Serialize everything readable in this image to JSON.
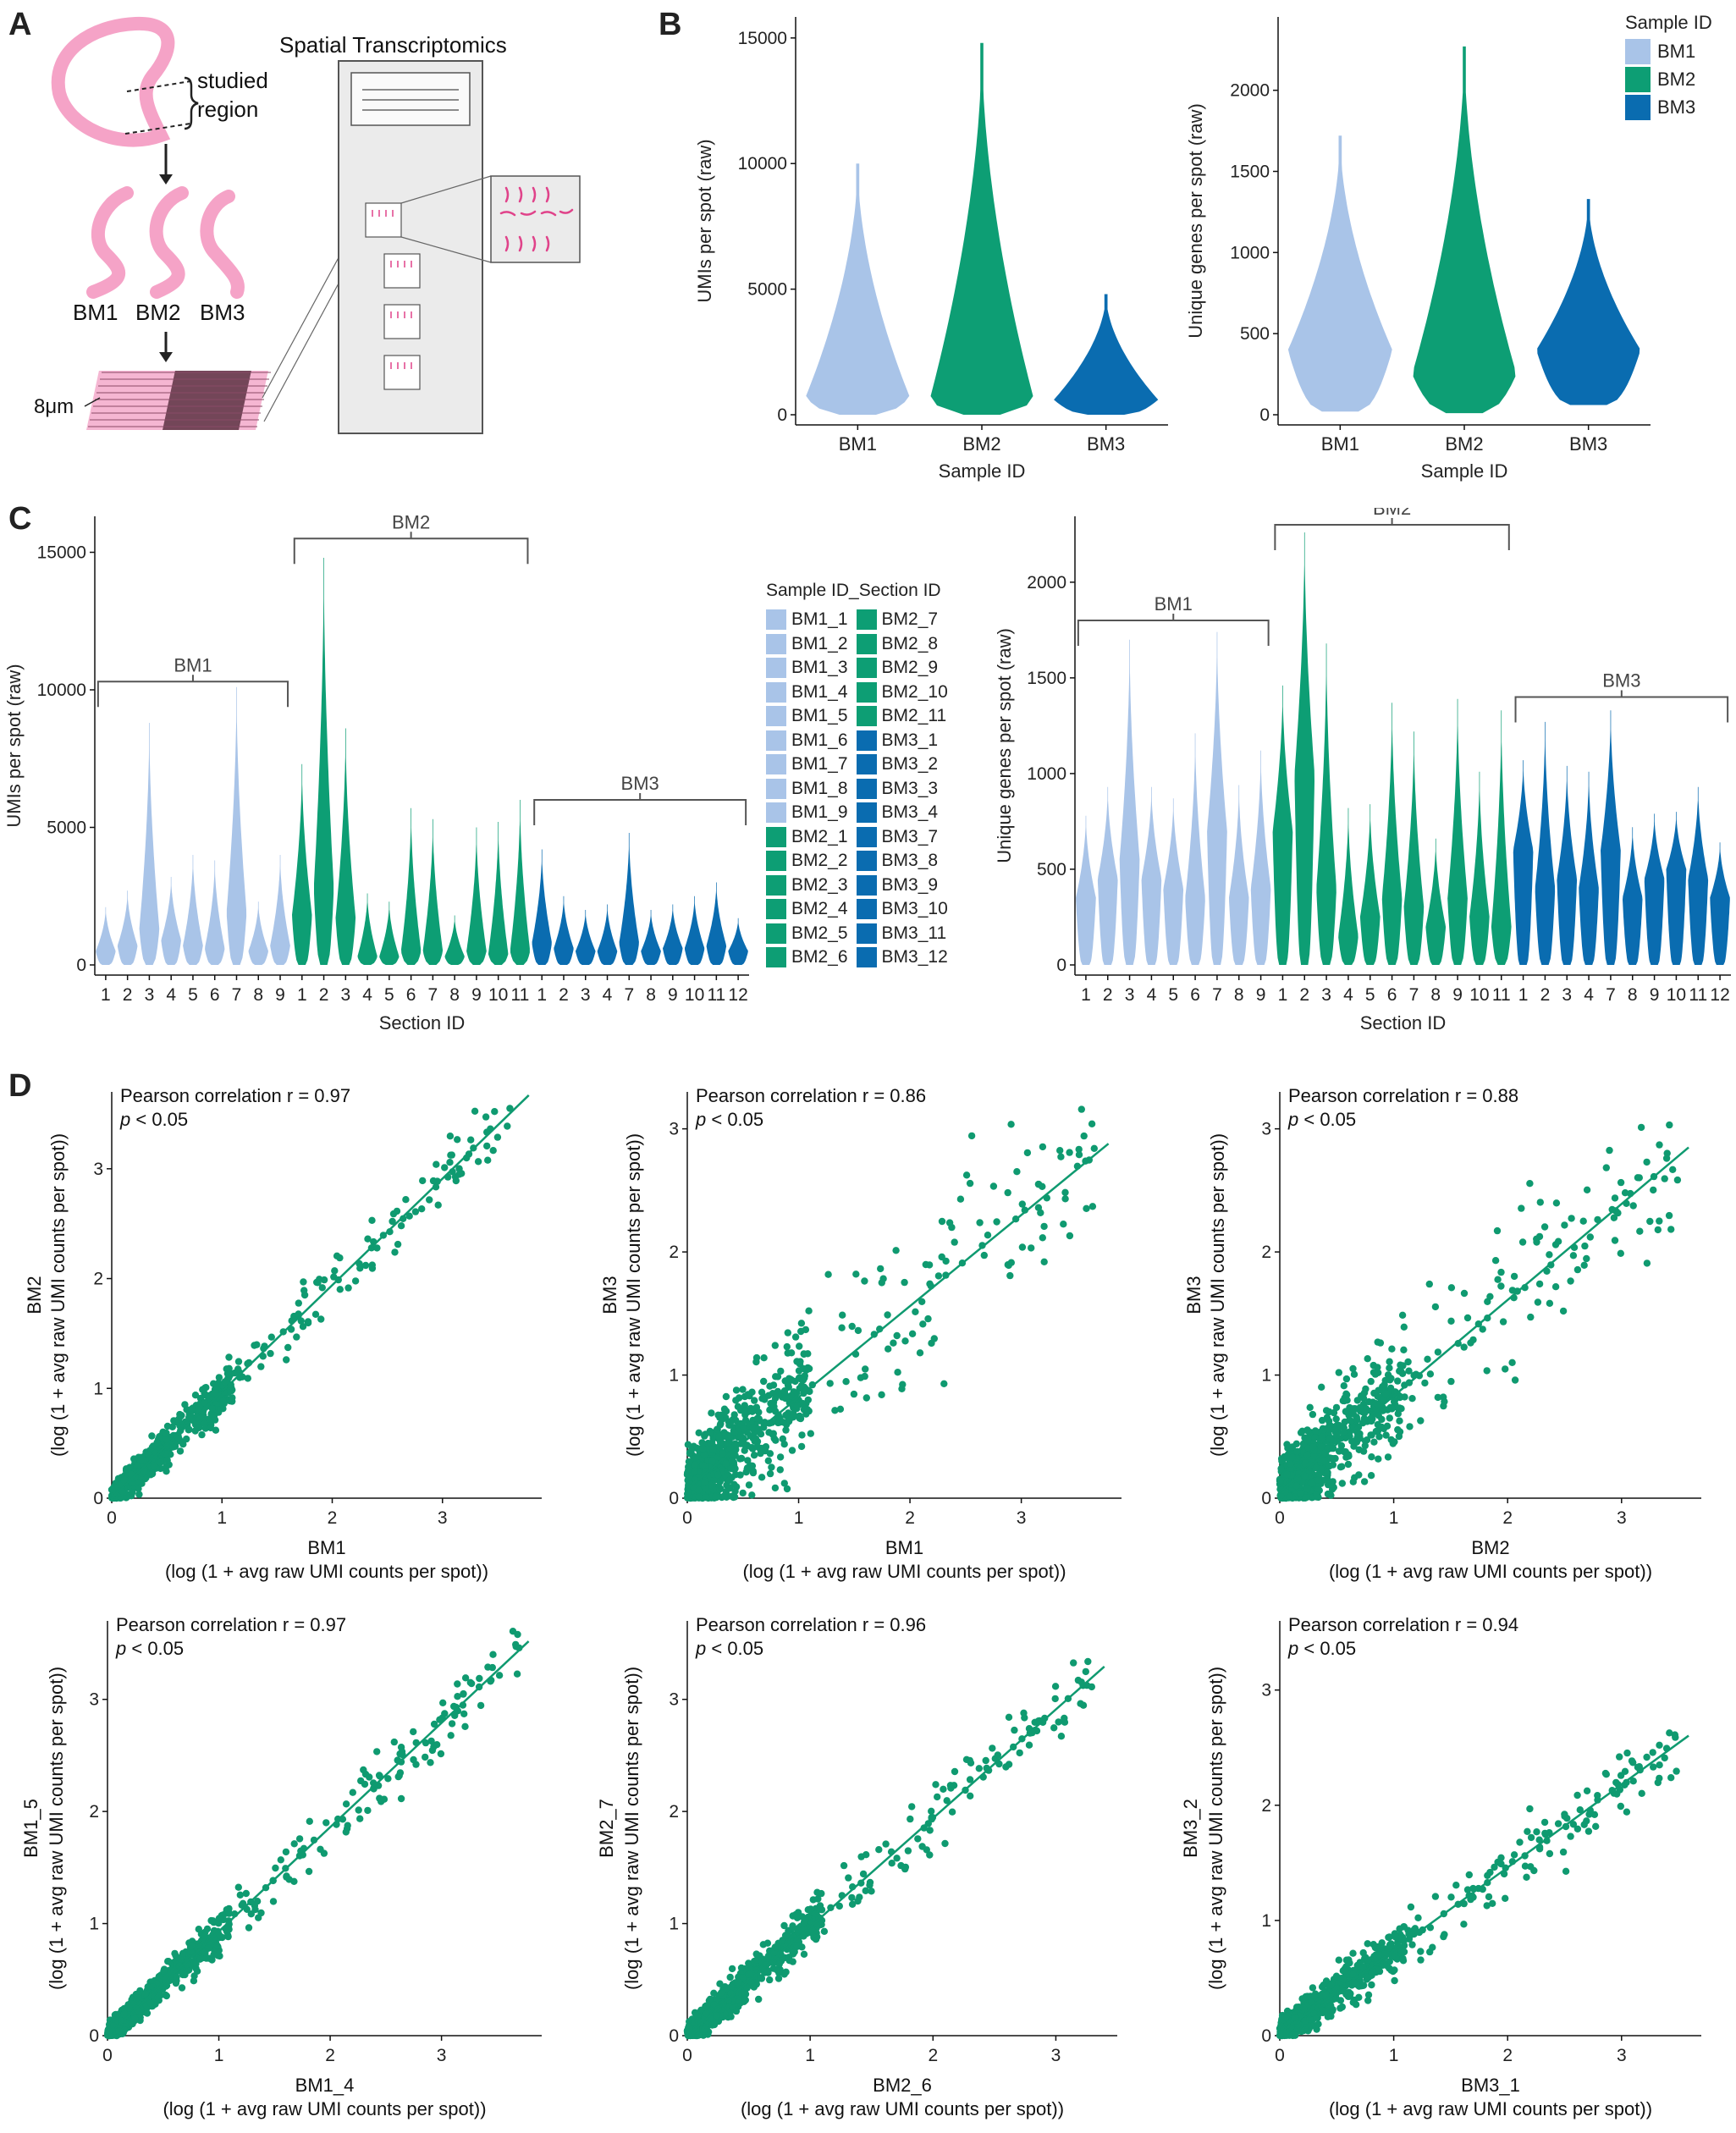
{
  "panels": {
    "a": "A",
    "b": "B",
    "c": "C",
    "d": "D"
  },
  "colors": {
    "BM1": "#a9c4e8",
    "BM2": "#0d9e74",
    "BM3": "#0a6cb0",
    "scatter": "#0f9a70",
    "pink": "#f5a3c7",
    "magenta": "#e0438a",
    "axis": "#111111",
    "bracket": "#555555"
  },
  "panelA": {
    "studied": "studied",
    "region": "region",
    "sample_labels": [
      "BM1",
      "BM2",
      "BM3"
    ],
    "thickness": "8μm",
    "spatial_title": "Spatial Transcriptomics"
  },
  "panelB": {
    "legend_title": "Sample ID",
    "legend_items": [
      "BM1",
      "BM2",
      "BM3"
    ]
  },
  "panelC": {
    "legend_title": "Sample ID_Section ID",
    "legend_col1": [
      "BM1_1",
      "BM1_2",
      "BM1_3",
      "BM1_4",
      "BM1_5",
      "BM1_6",
      "BM1_7",
      "BM1_8",
      "BM1_9",
      "BM2_1",
      "BM2_2",
      "BM2_3",
      "BM2_4",
      "BM2_5",
      "BM2_6"
    ],
    "legend_col2": [
      "BM2_7",
      "BM2_8",
      "BM2_9",
      "BM2_10",
      "BM2_11",
      "BM3_1",
      "BM3_2",
      "BM3_3",
      "BM3_4",
      "BM3_7",
      "BM3_8",
      "BM3_9",
      "BM3_10",
      "BM3_11",
      "BM3_12"
    ]
  },
  "chart_data": [
    {
      "id": "B-umi",
      "type": "violin",
      "xlabel": "Sample ID",
      "ylabel": "UMIs per spot (raw)",
      "ylim": [
        0,
        15500
      ],
      "yticks": [
        0,
        5000,
        10000,
        15000
      ],
      "categories": [
        "BM1",
        "BM2",
        "BM3"
      ],
      "series": [
        {
          "name": "BM1",
          "min": 0,
          "max": 10000,
          "median": 700
        },
        {
          "name": "BM2",
          "min": 0,
          "max": 14800,
          "median": 600
        },
        {
          "name": "BM3",
          "min": 0,
          "max": 4800,
          "median": 600
        }
      ]
    },
    {
      "id": "B-genes",
      "type": "violin",
      "xlabel": "Sample ID",
      "ylabel": "Unique genes per spot (raw)",
      "ylim": [
        0,
        2400
      ],
      "yticks": [
        0,
        500,
        1000,
        1500,
        2000
      ],
      "categories": [
        "BM1",
        "BM2",
        "BM3"
      ],
      "series": [
        {
          "name": "BM1",
          "min": 20,
          "max": 1720,
          "median": 400
        },
        {
          "name": "BM2",
          "min": 10,
          "max": 2270,
          "median": 250
        },
        {
          "name": "BM3",
          "min": 60,
          "max": 1330,
          "median": 400
        }
      ]
    },
    {
      "id": "C-umi",
      "type": "violin",
      "xlabel": "Section ID",
      "ylabel": "UMIs per spot (raw)",
      "ylim": [
        0,
        16000
      ],
      "yticks": [
        0,
        5000,
        10000,
        15000
      ],
      "groups": [
        {
          "name": "BM1",
          "sections": [
            "1",
            "2",
            "3",
            "4",
            "5",
            "6",
            "7",
            "8",
            "9"
          ],
          "max": [
            2100,
            2700,
            8800,
            3200,
            4000,
            3800,
            10100,
            2300,
            4000
          ],
          "median": [
            500,
            700,
            1300,
            900,
            700,
            600,
            1900,
            500,
            700
          ]
        },
        {
          "name": "BM2",
          "sections": [
            "1",
            "2",
            "3",
            "4",
            "5",
            "6",
            "7",
            "8",
            "9",
            "10",
            "11"
          ],
          "max": [
            7300,
            14800,
            8600,
            2600,
            2300,
            5700,
            5300,
            1800,
            5000,
            5200,
            6000
          ],
          "median": [
            1800,
            2800,
            1700,
            300,
            300,
            500,
            500,
            300,
            500,
            400,
            500
          ]
        },
        {
          "name": "BM3",
          "sections": [
            "1",
            "2",
            "3",
            "4",
            "7",
            "8",
            "9",
            "10",
            "11",
            "12"
          ],
          "max": [
            4200,
            2500,
            2000,
            2200,
            4800,
            2000,
            2200,
            2500,
            3000,
            1700
          ],
          "median": [
            800,
            600,
            500,
            500,
            800,
            500,
            600,
            600,
            700,
            500
          ]
        }
      ]
    },
    {
      "id": "C-genes",
      "type": "violin",
      "xlabel": "Section ID",
      "ylabel": "Unique genes per spot (raw)",
      "ylim": [
        0,
        2300
      ],
      "yticks": [
        0,
        500,
        1000,
        1500,
        2000
      ],
      "groups": [
        {
          "name": "BM1",
          "sections": [
            "1",
            "2",
            "3",
            "4",
            "5",
            "6",
            "7",
            "8",
            "9"
          ],
          "max": [
            780,
            930,
            1700,
            930,
            870,
            1210,
            1740,
            940,
            1120
          ],
          "median": [
            350,
            450,
            550,
            450,
            400,
            350,
            700,
            350,
            400
          ]
        },
        {
          "name": "BM2",
          "sections": [
            "1",
            "2",
            "3",
            "4",
            "5",
            "6",
            "7",
            "8",
            "9",
            "10",
            "11"
          ],
          "max": [
            1460,
            2260,
            1680,
            820,
            840,
            1370,
            1220,
            660,
            1390,
            1010,
            1330
          ],
          "median": [
            700,
            1000,
            400,
            150,
            250,
            350,
            300,
            200,
            350,
            250,
            200
          ]
        },
        {
          "name": "BM3",
          "sections": [
            "1",
            "2",
            "3",
            "4",
            "7",
            "8",
            "9",
            "10",
            "11",
            "12"
          ],
          "max": [
            1070,
            1270,
            1040,
            1010,
            1330,
            720,
            790,
            800,
            930,
            640
          ],
          "median": [
            600,
            400,
            450,
            400,
            600,
            350,
            450,
            500,
            450,
            350
          ]
        }
      ]
    },
    {
      "id": "D1",
      "type": "scatter",
      "xlabel": "BM1",
      "ylabel": "BM2",
      "axis_note": "(log (1 + avg raw UMI counts per spot))",
      "annotation": "Pearson correlation r = 0.97",
      "p_value": "p < 0.05",
      "xticks": [
        0,
        1,
        2,
        3
      ],
      "yticks": [
        0,
        1,
        2,
        3
      ],
      "xlim": [
        0,
        3.9
      ],
      "ylim": [
        0,
        3.7
      ],
      "fit": {
        "slope": 0.97,
        "intercept": 0.0
      },
      "spread": 0.12
    },
    {
      "id": "D2",
      "type": "scatter",
      "xlabel": "BM1",
      "ylabel": "BM3",
      "axis_note": "(log (1 + avg raw UMI counts per spot))",
      "annotation": "Pearson correlation r = 0.86",
      "p_value": "p < 0.05",
      "xticks": [
        0,
        1,
        2,
        3
      ],
      "yticks": [
        0,
        1,
        2,
        3
      ],
      "xlim": [
        0,
        3.9
      ],
      "ylim": [
        0,
        3.3
      ],
      "fit": {
        "slope": 0.74,
        "intercept": 0.08
      },
      "spread": 0.32
    },
    {
      "id": "D3",
      "type": "scatter",
      "xlabel": "BM2",
      "ylabel": "BM3",
      "axis_note": "(log (1 + avg raw UMI counts per spot))",
      "annotation": "Pearson correlation r = 0.88",
      "p_value": "p < 0.05",
      "xticks": [
        0,
        1,
        2,
        3
      ],
      "yticks": [
        0,
        1,
        2,
        3
      ],
      "xlim": [
        0,
        3.7
      ],
      "ylim": [
        0,
        3.3
      ],
      "fit": {
        "slope": 0.78,
        "intercept": 0.05
      },
      "spread": 0.28
    },
    {
      "id": "D4",
      "type": "scatter",
      "xlabel": "BM1_4",
      "ylabel": "BM1_5",
      "axis_note": "(log (1 + avg raw UMI counts per spot))",
      "annotation": "Pearson correlation r = 0.97",
      "p_value": "p < 0.05",
      "xticks": [
        0,
        1,
        2,
        3
      ],
      "yticks": [
        0,
        1,
        2,
        3
      ],
      "xlim": [
        0,
        3.9
      ],
      "ylim": [
        0,
        3.7
      ],
      "fit": {
        "slope": 0.93,
        "intercept": 0.0
      },
      "spread": 0.11
    },
    {
      "id": "D5",
      "type": "scatter",
      "xlabel": "BM2_6",
      "ylabel": "BM2_7",
      "axis_note": "(log (1 + avg raw UMI counts per spot))",
      "annotation": "Pearson correlation r = 0.96",
      "p_value": "p < 0.05",
      "xticks": [
        0,
        1,
        2,
        3
      ],
      "yticks": [
        0,
        1,
        2,
        3
      ],
      "xlim": [
        0,
        3.5
      ],
      "ylim": [
        0,
        3.7
      ],
      "fit": {
        "slope": 0.97,
        "intercept": 0.0
      },
      "spread": 0.12
    },
    {
      "id": "D6",
      "type": "scatter",
      "xlabel": "BM3_1",
      "ylabel": "BM3_2",
      "axis_note": "(log (1 + avg raw UMI counts per spot))",
      "annotation": "Pearson correlation r = 0.94",
      "p_value": "p < 0.05",
      "xticks": [
        0,
        1,
        2,
        3
      ],
      "yticks": [
        0,
        1,
        2,
        3
      ],
      "xlim": [
        0,
        3.7
      ],
      "ylim": [
        0,
        3.6
      ],
      "fit": {
        "slope": 0.72,
        "intercept": 0.02
      },
      "spread": 0.13
    }
  ]
}
